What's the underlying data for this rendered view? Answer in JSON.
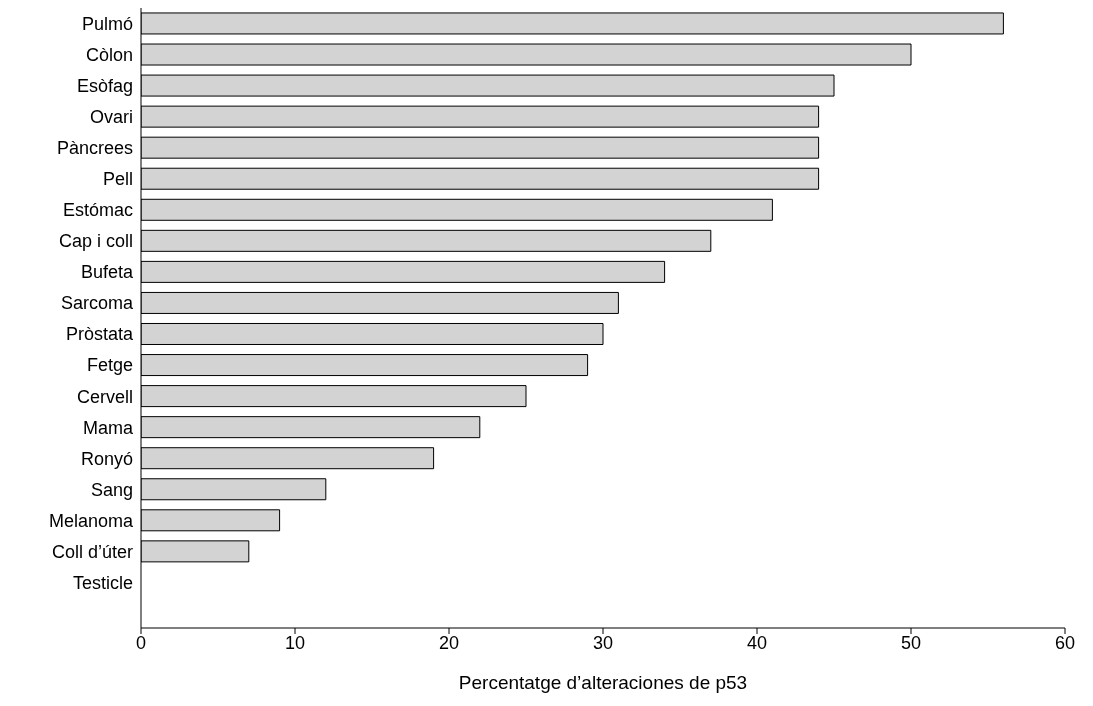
{
  "chart_data": {
    "type": "bar",
    "orientation": "horizontal",
    "xlabel": "Percentatge d’alteraciones de p53",
    "categories": [
      "Pulmó",
      "Còlon",
      "Esòfag",
      "Ovari",
      "Pàncrees",
      "Pell",
      "Estómac",
      "Cap i coll",
      "Bufeta",
      "Sarcoma",
      "Pròstata",
      "Fetge",
      "Cervell",
      "Mama",
      "Ronyó",
      "Sang",
      "Melanoma",
      "Coll d’úter",
      "Testicle"
    ],
    "values": [
      56,
      50,
      45,
      44,
      44,
      44,
      41,
      37,
      34,
      31,
      30,
      29,
      25,
      22,
      19,
      12,
      9,
      7,
      0
    ],
    "color": "#d3d3d3",
    "xlim": [
      0,
      60
    ],
    "xticks": [
      0,
      10,
      20,
      30,
      40,
      50,
      60
    ],
    "grid": false
  }
}
